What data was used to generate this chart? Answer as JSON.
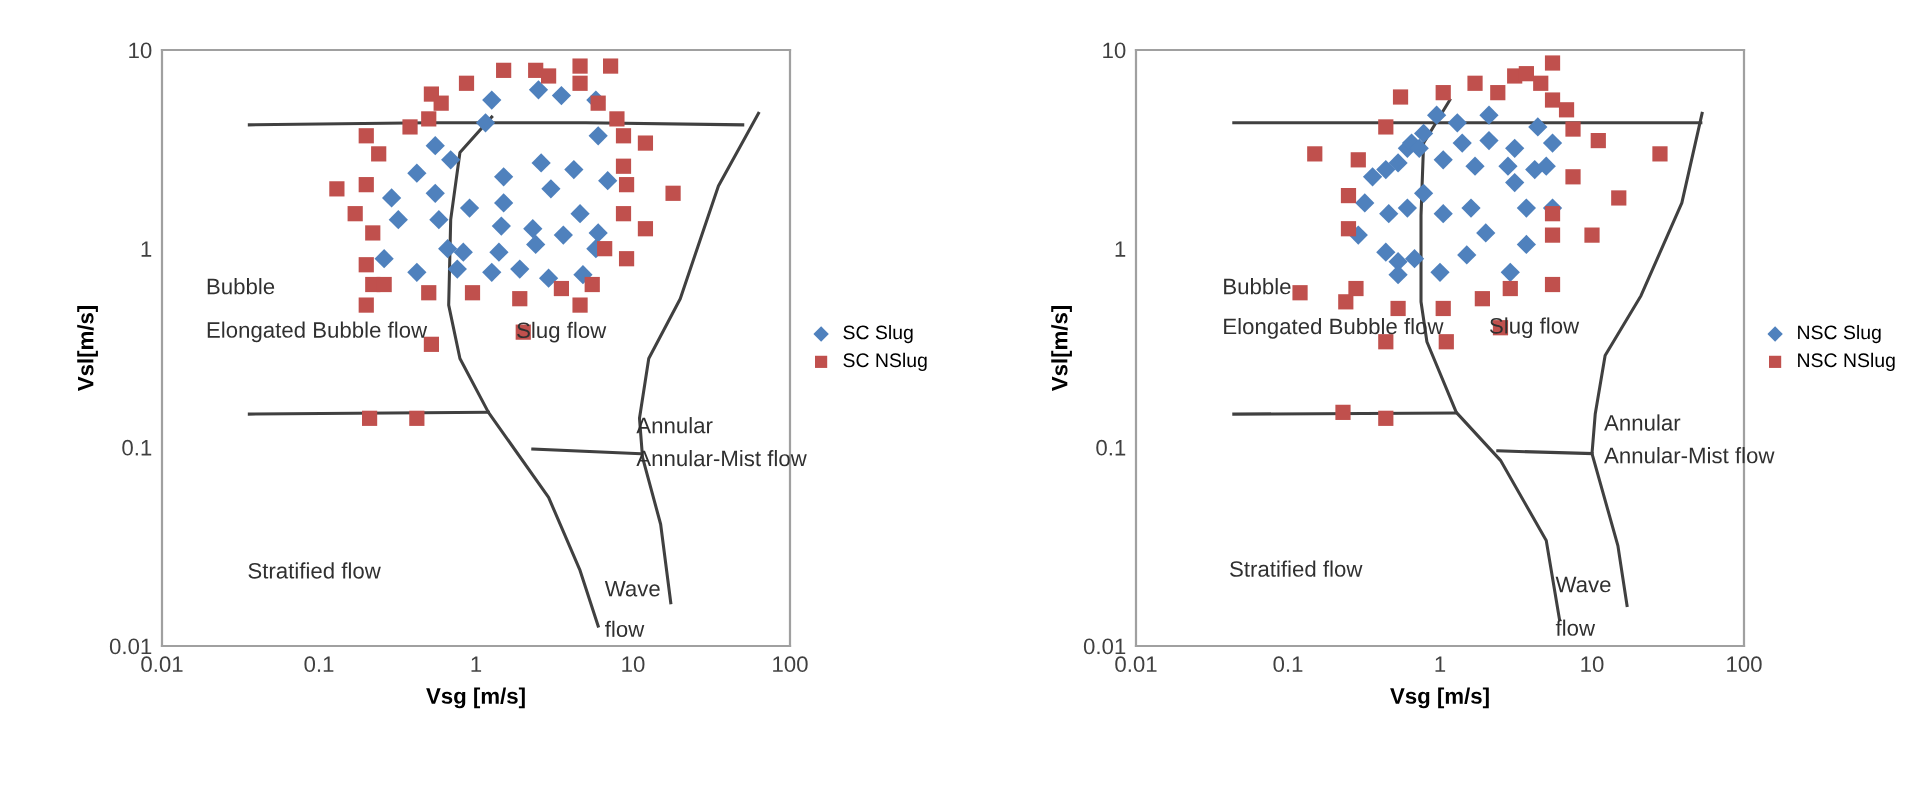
{
  "chart_data": [
    {
      "type": "scatter",
      "xlabel": "Vsg [m/s]",
      "ylabel": "Vsl[m/s]",
      "log": "xy",
      "xlim": [
        0.01,
        100
      ],
      "ylim": [
        0.01,
        10
      ],
      "xticks": [
        0.01,
        0.1,
        1,
        10,
        100
      ],
      "yticks": [
        0.01,
        0.1,
        1,
        10
      ],
      "legend": "right",
      "series": [
        {
          "name": "SC Slug",
          "marker": "diamond",
          "color": "#4f81bd",
          "x": [
            1.26,
            2.5,
            3.5,
            5.8,
            1.15,
            6.0,
            0.55,
            0.69,
            0.42,
            1.5,
            2.6,
            4.2,
            6.9,
            0.29,
            0.55,
            0.91,
            1.5,
            3.0,
            4.6,
            0.32,
            0.58,
            1.45,
            2.3,
            3.6,
            6.0,
            0.26,
            0.66,
            0.83,
            1.4,
            1.9,
            2.4,
            2.9,
            4.8,
            0.42,
            0.76,
            1.26,
            5.8
          ],
          "values": [
            5.6,
            6.3,
            5.9,
            5.6,
            4.3,
            3.7,
            3.3,
            2.8,
            2.4,
            2.3,
            2.7,
            2.5,
            2.2,
            1.8,
            1.9,
            1.6,
            1.7,
            2.0,
            1.5,
            1.4,
            1.4,
            1.3,
            1.26,
            1.17,
            1.2,
            0.89,
            1.0,
            0.96,
            0.96,
            0.79,
            1.05,
            0.71,
            0.74,
            0.76,
            0.79,
            0.76,
            1.0
          ]
        },
        {
          "name": "SC NSlug",
          "marker": "square",
          "color": "#c0504d",
          "x": [
            1.5,
            2.4,
            2.9,
            4.6,
            7.2,
            0.87,
            0.52,
            0.6,
            0.38,
            0.5,
            0.2,
            0.24,
            4.6,
            6.0,
            7.9,
            8.7,
            12,
            8.7,
            9.1,
            18,
            0.13,
            0.2,
            0.17,
            0.22,
            8.7,
            12,
            6.6,
            9.1,
            0.2,
            0.22,
            0.26,
            0.2,
            0.5,
            0.95,
            1.9,
            3.5,
            4.6,
            5.5,
            0.52,
            2.0,
            0.21,
            0.42
          ],
          "values": [
            7.9,
            7.9,
            7.4,
            8.3,
            8.3,
            6.8,
            6.0,
            5.4,
            4.1,
            4.5,
            3.7,
            3.0,
            6.8,
            5.4,
            4.5,
            3.7,
            3.4,
            2.6,
            2.1,
            1.9,
            2.0,
            2.1,
            1.5,
            1.2,
            1.5,
            1.26,
            1.0,
            0.89,
            0.83,
            0.66,
            0.66,
            0.52,
            0.6,
            0.6,
            0.56,
            0.63,
            0.52,
            0.66,
            0.33,
            0.38,
            0.14,
            0.14
          ]
        },
        {
          "type": "line",
          "color": "#404040",
          "x": [
            0.036,
            0.5,
            5,
            50
          ],
          "values": [
            4.2,
            4.3,
            4.3,
            4.2
          ]
        },
        {
          "type": "line",
          "color": "#404040",
          "x": [
            1.26,
            0.79,
            0.69,
            0.67,
            0.79,
            1.2,
            2.9,
            4.6,
            6.0
          ],
          "values": [
            4.6,
            3.05,
            1.4,
            0.52,
            0.28,
            0.15,
            0.056,
            0.024,
            0.0126
          ]
        },
        {
          "type": "line",
          "color": "#404040",
          "x": [
            0.036,
            1.2
          ],
          "values": [
            0.147,
            0.15
          ]
        },
        {
          "type": "line",
          "color": "#404040",
          "x": [
            2.3,
            11
          ],
          "values": [
            0.098,
            0.093
          ]
        },
        {
          "type": "line",
          "color": "#404040",
          "x": [
            63,
            35,
            20,
            12.6,
            11,
            11.5,
            15,
            17.4
          ],
          "values": [
            4.8,
            2.07,
            0.56,
            0.28,
            0.14,
            0.089,
            0.041,
            0.0165
          ]
        }
      ],
      "annotations": [
        "Bubble",
        "Elongated Bubble flow",
        {
          "text": "Slug flow",
          "x": 1.8,
          "y": 0.38
        },
        {
          "text": "Annular",
          "x": 10.5,
          "y": 0.126
        },
        {
          "text": "Annular-Mist flow",
          "x": 10.5,
          "y": 0.086
        },
        "Stratified flow",
        "Wave",
        "flow"
      ]
    },
    {
      "type": "scatter",
      "xlabel": "Vsg [m/s]",
      "ylabel": "Vsl[m/s]",
      "log": "xy",
      "xlim": [
        0.01,
        100
      ],
      "ylim": [
        0.01,
        10
      ],
      "xticks": [
        0.01,
        0.1,
        1,
        10,
        100
      ],
      "yticks": [
        0.01,
        0.1,
        1,
        10
      ],
      "legend": "right",
      "series": [
        {
          "name": "NSC Slug",
          "marker": "diamond",
          "color": "#4f81bd",
          "x": [
            0.95,
            1.3,
            2.1,
            0.78,
            0.61,
            0.53,
            0.65,
            0.44,
            0.36,
            0.32,
            0.46,
            0.61,
            0.78,
            1.05,
            1.7,
            2.8,
            4.2,
            5.0,
            5.5,
            4.4,
            3.1,
            2.1,
            1.4,
            1.05,
            1.6,
            2.0,
            3.1,
            3.7,
            5.5,
            0.29,
            0.44,
            0.53,
            0.53,
            0.68,
            1.0,
            1.5,
            2.9,
            3.7,
            0.73
          ],
          "values": [
            4.7,
            4.3,
            4.7,
            3.8,
            3.2,
            2.7,
            3.4,
            2.5,
            2.3,
            1.7,
            1.5,
            1.6,
            1.9,
            2.8,
            2.6,
            2.6,
            2.5,
            2.6,
            3.4,
            4.1,
            3.2,
            3.5,
            3.4,
            1.5,
            1.6,
            1.2,
            2.15,
            1.6,
            1.6,
            1.17,
            0.96,
            0.86,
            0.74,
            0.89,
            0.76,
            0.93,
            0.76,
            1.05,
            3.2
          ]
        },
        {
          "name": "NSC NSlug",
          "marker": "square",
          "color": "#c0504d",
          "x": [
            0.55,
            1.05,
            1.7,
            2.4,
            3.1,
            3.7,
            5.5,
            4.6,
            5.5,
            6.8,
            7.5,
            0.44,
            0.15,
            0.29,
            0.25,
            0.25,
            11,
            28,
            7.5,
            15,
            5.5,
            5.5,
            10,
            0.12,
            0.24,
            0.28,
            0.53,
            0.44,
            1.05,
            1.1,
            1.9,
            2.9,
            2.5,
            5.5,
            0.23,
            0.44
          ],
          "values": [
            5.8,
            6.1,
            6.8,
            6.1,
            7.4,
            7.6,
            8.6,
            6.8,
            5.6,
            5.0,
            4.0,
            4.1,
            3.0,
            2.8,
            1.85,
            1.26,
            3.5,
            3.0,
            2.3,
            1.8,
            1.5,
            1.17,
            1.17,
            0.6,
            0.54,
            0.63,
            0.5,
            0.34,
            0.5,
            0.34,
            0.56,
            0.63,
            0.4,
            0.66,
            0.15,
            0.14
          ]
        },
        {
          "type": "line",
          "color": "#404040",
          "x": [
            0.044,
            0.5,
            5,
            52
          ],
          "values": [
            4.3,
            4.3,
            4.3,
            4.3
          ]
        },
        {
          "type": "line",
          "color": "#404040",
          "x": [
            1.16,
            0.78,
            0.75,
            0.75,
            0.82,
            1.28,
            2.5,
            5.0,
            6.1
          ],
          "values": [
            5.6,
            3.4,
            1.47,
            0.54,
            0.34,
            0.15,
            0.086,
            0.034,
            0.0137
          ]
        },
        {
          "type": "line",
          "color": "#404040",
          "x": [
            0.044,
            1.28
          ],
          "values": [
            0.147,
            0.149
          ]
        },
        {
          "type": "line",
          "color": "#404040",
          "x": [
            2.4,
            10
          ],
          "values": [
            0.096,
            0.093
          ]
        },
        {
          "type": "line",
          "color": "#404040",
          "x": [
            53,
            39,
            21,
            12.2,
            10.5,
            10,
            14.8,
            17
          ],
          "values": [
            4.8,
            1.7,
            0.58,
            0.29,
            0.147,
            0.093,
            0.032,
            0.016
          ]
        }
      ],
      "annotations": [
        "Bubble",
        "Elongated Bubble flow",
        {
          "text": "Slug flow",
          "x": 2.1,
          "y": 0.4
        },
        {
          "text": "Annular",
          "x": 12,
          "y": 0.13
        },
        {
          "text": "Annular-Mist flow",
          "x": 12,
          "y": 0.089
        },
        "Stratified flow",
        "Wave",
        "flow"
      ]
    }
  ]
}
